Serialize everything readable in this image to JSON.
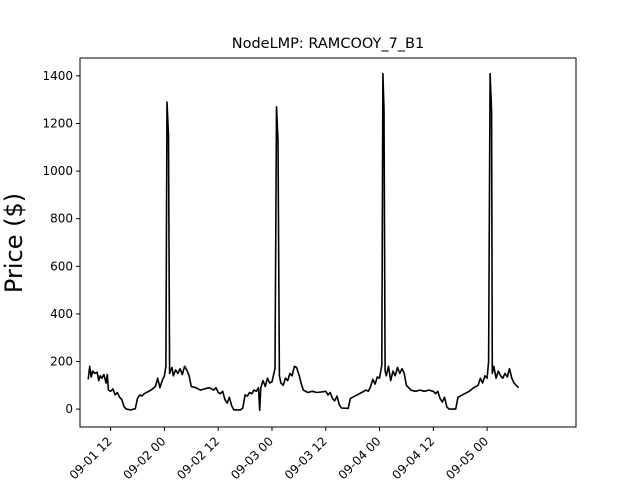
{
  "chart_data": {
    "type": "line",
    "title": "NodeLMP: RAMCOOY_7_B1",
    "xlabel": "",
    "ylabel": "Price ($)",
    "xlim": [
      "2023-09-01T05:10",
      "2023-09-05T19:50"
    ],
    "ylim": [
      -75,
      1475
    ],
    "grid": false,
    "legend": "none",
    "line_color": "#000000",
    "xticks": [
      {
        "value": "2023-09-01T12:00",
        "label": "09-01 12"
      },
      {
        "value": "2023-09-02T00:00",
        "label": "09-02 00"
      },
      {
        "value": "2023-09-02T12:00",
        "label": "09-02 12"
      },
      {
        "value": "2023-09-03T00:00",
        "label": "09-03 00"
      },
      {
        "value": "2023-09-03T12:00",
        "label": "09-03 12"
      },
      {
        "value": "2023-09-04T00:00",
        "label": "09-04 00"
      },
      {
        "value": "2023-09-04T12:00",
        "label": "09-04 12"
      },
      {
        "value": "2023-09-05T00:00",
        "label": "09-05 00"
      }
    ],
    "yticks": [
      {
        "value": 0,
        "label": "0"
      },
      {
        "value": 200,
        "label": "200"
      },
      {
        "value": 400,
        "label": "400"
      },
      {
        "value": 600,
        "label": "600"
      },
      {
        "value": 800,
        "label": "800"
      },
      {
        "value": 1000,
        "label": "1000"
      },
      {
        "value": 1200,
        "label": "1200"
      },
      {
        "value": 1400,
        "label": "1400"
      }
    ],
    "series": [
      {
        "points": [
          [
            "2023-09-01T07:00",
            125
          ],
          [
            "2023-09-01T07:20",
            180
          ],
          [
            "2023-09-01T07:40",
            135
          ],
          [
            "2023-09-01T08:00",
            160
          ],
          [
            "2023-09-01T08:30",
            150
          ],
          [
            "2023-09-01T09:00",
            155
          ],
          [
            "2023-09-01T09:20",
            120
          ],
          [
            "2023-09-01T09:40",
            140
          ],
          [
            "2023-09-01T10:00",
            130
          ],
          [
            "2023-09-01T10:30",
            145
          ],
          [
            "2023-09-01T11:00",
            110
          ],
          [
            "2023-09-01T11:15",
            145
          ],
          [
            "2023-09-01T11:30",
            80
          ],
          [
            "2023-09-01T12:00",
            75
          ],
          [
            "2023-09-01T12:30",
            85
          ],
          [
            "2023-09-01T13:00",
            60
          ],
          [
            "2023-09-01T13:30",
            70
          ],
          [
            "2023-09-01T14:00",
            50
          ],
          [
            "2023-09-01T14:30",
            40
          ],
          [
            "2023-09-01T15:00",
            10
          ],
          [
            "2023-09-01T15:30",
            0
          ],
          [
            "2023-09-01T16:30",
            -3
          ],
          [
            "2023-09-01T17:30",
            2
          ],
          [
            "2023-09-01T18:00",
            45
          ],
          [
            "2023-09-01T18:30",
            60
          ],
          [
            "2023-09-01T19:00",
            55
          ],
          [
            "2023-09-01T19:30",
            65
          ],
          [
            "2023-09-01T20:00",
            70
          ],
          [
            "2023-09-01T21:00",
            80
          ],
          [
            "2023-09-01T22:00",
            95
          ],
          [
            "2023-09-01T22:30",
            130
          ],
          [
            "2023-09-01T23:00",
            90
          ],
          [
            "2023-09-01T23:30",
            120
          ],
          [
            "2023-09-02T00:00",
            140
          ],
          [
            "2023-09-02T00:20",
            180
          ],
          [
            "2023-09-02T00:35",
            1290
          ],
          [
            "2023-09-02T00:55",
            1150
          ],
          [
            "2023-09-02T01:10",
            150
          ],
          [
            "2023-09-02T01:40",
            175
          ],
          [
            "2023-09-02T02:00",
            140
          ],
          [
            "2023-09-02T02:30",
            165
          ],
          [
            "2023-09-02T03:00",
            150
          ],
          [
            "2023-09-02T03:30",
            170
          ],
          [
            "2023-09-02T04:00",
            145
          ],
          [
            "2023-09-02T04:30",
            180
          ],
          [
            "2023-09-02T05:00",
            165
          ],
          [
            "2023-09-02T05:30",
            140
          ],
          [
            "2023-09-02T06:00",
            95
          ],
          [
            "2023-09-02T07:00",
            90
          ],
          [
            "2023-09-02T08:00",
            80
          ],
          [
            "2023-09-02T09:00",
            85
          ],
          [
            "2023-09-02T10:00",
            90
          ],
          [
            "2023-09-02T11:00",
            80
          ],
          [
            "2023-09-02T11:30",
            90
          ],
          [
            "2023-09-02T12:00",
            70
          ],
          [
            "2023-09-02T12:30",
            65
          ],
          [
            "2023-09-02T13:00",
            75
          ],
          [
            "2023-09-02T13:30",
            40
          ],
          [
            "2023-09-02T14:00",
            25
          ],
          [
            "2023-09-02T14:30",
            50
          ],
          [
            "2023-09-02T15:00",
            15
          ],
          [
            "2023-09-02T15:30",
            -3
          ],
          [
            "2023-09-02T17:00",
            -3
          ],
          [
            "2023-09-02T17:30",
            5
          ],
          [
            "2023-09-02T18:00",
            60
          ],
          [
            "2023-09-02T18:30",
            55
          ],
          [
            "2023-09-02T19:00",
            70
          ],
          [
            "2023-09-02T19:30",
            65
          ],
          [
            "2023-09-02T20:00",
            80
          ],
          [
            "2023-09-02T20:30",
            75
          ],
          [
            "2023-09-02T21:00",
            90
          ],
          [
            "2023-09-02T21:15",
            -5
          ],
          [
            "2023-09-02T21:30",
            90
          ],
          [
            "2023-09-02T22:00",
            120
          ],
          [
            "2023-09-02T22:30",
            95
          ],
          [
            "2023-09-02T23:00",
            130
          ],
          [
            "2023-09-02T23:30",
            110
          ],
          [
            "2023-09-03T00:00",
            115
          ],
          [
            "2023-09-03T00:40",
            170
          ],
          [
            "2023-09-03T01:00",
            1270
          ],
          [
            "2023-09-03T01:20",
            1130
          ],
          [
            "2023-09-03T01:40",
            140
          ],
          [
            "2023-09-03T02:00",
            110
          ],
          [
            "2023-09-03T02:30",
            100
          ],
          [
            "2023-09-03T03:00",
            130
          ],
          [
            "2023-09-03T03:30",
            120
          ],
          [
            "2023-09-03T04:00",
            150
          ],
          [
            "2023-09-03T04:30",
            140
          ],
          [
            "2023-09-03T05:00",
            180
          ],
          [
            "2023-09-03T05:30",
            175
          ],
          [
            "2023-09-03T06:00",
            145
          ],
          [
            "2023-09-03T06:30",
            110
          ],
          [
            "2023-09-03T07:00",
            80
          ],
          [
            "2023-09-03T08:00",
            70
          ],
          [
            "2023-09-03T09:00",
            75
          ],
          [
            "2023-09-03T10:00",
            70
          ],
          [
            "2023-09-03T11:00",
            72
          ],
          [
            "2023-09-03T12:00",
            75
          ],
          [
            "2023-09-03T12:30",
            60
          ],
          [
            "2023-09-03T13:00",
            70
          ],
          [
            "2023-09-03T13:30",
            45
          ],
          [
            "2023-09-03T14:00",
            35
          ],
          [
            "2023-09-03T14:30",
            55
          ],
          [
            "2023-09-03T15:00",
            20
          ],
          [
            "2023-09-03T15:30",
            5
          ],
          [
            "2023-09-03T17:00",
            3
          ],
          [
            "2023-09-03T17:30",
            45
          ],
          [
            "2023-09-03T18:00",
            50
          ],
          [
            "2023-09-03T19:00",
            60
          ],
          [
            "2023-09-03T20:00",
            70
          ],
          [
            "2023-09-03T21:00",
            80
          ],
          [
            "2023-09-03T21:30",
            75
          ],
          [
            "2023-09-03T22:00",
            95
          ],
          [
            "2023-09-03T22:30",
            125
          ],
          [
            "2023-09-03T23:00",
            105
          ],
          [
            "2023-09-03T23:30",
            135
          ],
          [
            "2023-09-04T00:00",
            130
          ],
          [
            "2023-09-04T00:30",
            185
          ],
          [
            "2023-09-04T00:45",
            1410
          ],
          [
            "2023-09-04T01:00",
            1260
          ],
          [
            "2023-09-04T01:15",
            160
          ],
          [
            "2023-09-04T01:30",
            140
          ],
          [
            "2023-09-04T02:00",
            180
          ],
          [
            "2023-09-04T02:30",
            120
          ],
          [
            "2023-09-04T03:00",
            160
          ],
          [
            "2023-09-04T03:30",
            140
          ],
          [
            "2023-09-04T04:00",
            175
          ],
          [
            "2023-09-04T04:30",
            150
          ],
          [
            "2023-09-04T05:00",
            170
          ],
          [
            "2023-09-04T05:30",
            150
          ],
          [
            "2023-09-04T06:00",
            100
          ],
          [
            "2023-09-04T07:00",
            80
          ],
          [
            "2023-09-04T08:00",
            75
          ],
          [
            "2023-09-04T09:00",
            80
          ],
          [
            "2023-09-04T10:00",
            75
          ],
          [
            "2023-09-04T11:00",
            80
          ],
          [
            "2023-09-04T12:00",
            75
          ],
          [
            "2023-09-04T12:30",
            65
          ],
          [
            "2023-09-04T13:00",
            75
          ],
          [
            "2023-09-04T13:30",
            45
          ],
          [
            "2023-09-04T14:00",
            30
          ],
          [
            "2023-09-04T14:30",
            50
          ],
          [
            "2023-09-04T15:00",
            10
          ],
          [
            "2023-09-04T15:30",
            0
          ],
          [
            "2023-09-04T17:00",
            0
          ],
          [
            "2023-09-04T17:30",
            50
          ],
          [
            "2023-09-04T18:00",
            55
          ],
          [
            "2023-09-04T19:00",
            65
          ],
          [
            "2023-09-04T20:00",
            75
          ],
          [
            "2023-09-04T21:00",
            90
          ],
          [
            "2023-09-04T22:00",
            100
          ],
          [
            "2023-09-04T22:30",
            130
          ],
          [
            "2023-09-04T23:00",
            110
          ],
          [
            "2023-09-04T23:30",
            140
          ],
          [
            "2023-09-05T00:00",
            130
          ],
          [
            "2023-09-05T00:20",
            200
          ],
          [
            "2023-09-05T00:40",
            1410
          ],
          [
            "2023-09-05T01:00",
            1250
          ],
          [
            "2023-09-05T01:10",
            150
          ],
          [
            "2023-09-05T01:30",
            180
          ],
          [
            "2023-09-05T02:00",
            130
          ],
          [
            "2023-09-05T02:30",
            160
          ],
          [
            "2023-09-05T03:00",
            140
          ],
          [
            "2023-09-05T03:30",
            130
          ],
          [
            "2023-09-05T04:00",
            150
          ],
          [
            "2023-09-05T04:30",
            135
          ],
          [
            "2023-09-05T05:00",
            170
          ],
          [
            "2023-09-05T05:30",
            130
          ],
          [
            "2023-09-05T06:00",
            110
          ],
          [
            "2023-09-05T06:30",
            100
          ],
          [
            "2023-09-05T07:00",
            90
          ]
        ]
      }
    ]
  }
}
